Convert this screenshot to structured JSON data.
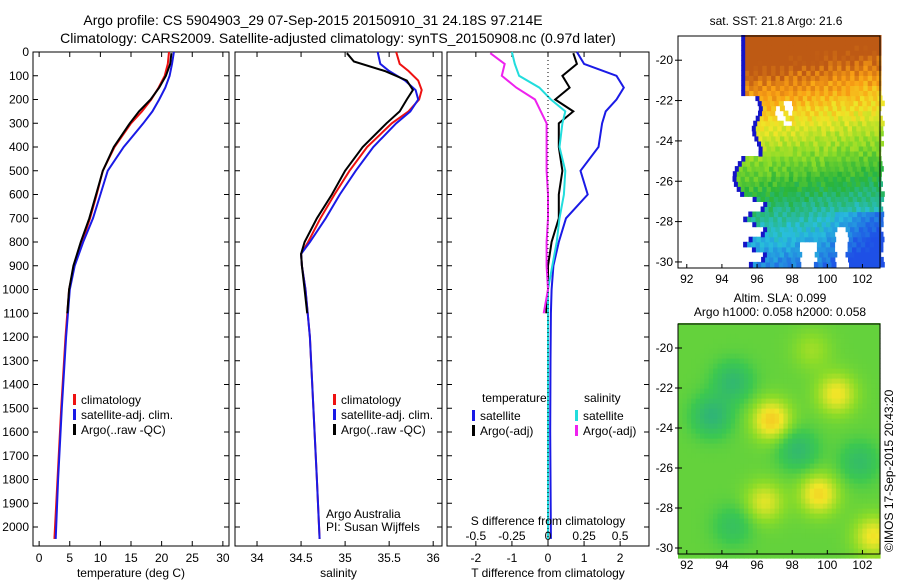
{
  "header": {
    "title_line1": "Argo profile: CS 5904903_29 07-Sep-2015 20150910_31 24.18S 97.214E",
    "title_line2": "Climatology: CARS2009. Satellite-adjusted climatology: synTS_20150908.nc (0.97d later)"
  },
  "colors": {
    "climatology": "#ee1111",
    "satellite": "#1a1ae6",
    "argo": "#000000",
    "sal_satellite": "#22dddd",
    "sal_argo": "#ee22ee"
  },
  "credit": {
    "line1": "Argo Australia",
    "line2": "PI: Susan Wijffels"
  },
  "stamp": "©IMOS 17-Sep-2015 20:43:20",
  "chart_data": [
    {
      "type": "line",
      "id": "temperature",
      "xlabel": "temperature (deg C)",
      "ylabel": "",
      "xlim": [
        -1,
        31
      ],
      "ylim": [
        2080,
        0
      ],
      "xticks": [
        0,
        5,
        10,
        15,
        20,
        25,
        30
      ],
      "yticks": [
        0,
        100,
        200,
        300,
        400,
        500,
        600,
        700,
        800,
        900,
        1000,
        1100,
        1200,
        1300,
        1400,
        1500,
        1600,
        1700,
        1800,
        1900,
        2000
      ],
      "legend": [
        "climatology",
        "satellite-adj. clim.",
        "Argo(..raw -QC)"
      ],
      "series": [
        {
          "name": "climatology",
          "color": "#ee1111",
          "depth": [
            0,
            50,
            100,
            150,
            200,
            250,
            300,
            400,
            500,
            600,
            700,
            800,
            900,
            1000,
            1200,
            1500,
            1800,
            2050
          ],
          "values": [
            21.2,
            21.0,
            20.5,
            19.5,
            18.3,
            16.8,
            15.0,
            12.3,
            10.4,
            9.4,
            8.3,
            7.0,
            5.7,
            4.9,
            4.3,
            3.6,
            3.0,
            2.5
          ]
        },
        {
          "name": "satellite-adj. clim.",
          "color": "#1a1ae6",
          "depth": [
            0,
            50,
            100,
            150,
            200,
            250,
            300,
            400,
            500,
            600,
            700,
            800,
            900,
            1000,
            1200,
            1500,
            1800,
            2050
          ],
          "values": [
            22.0,
            21.7,
            21.3,
            20.6,
            19.6,
            18.5,
            17.0,
            13.8,
            11.2,
            10.0,
            8.8,
            7.2,
            5.8,
            5.0,
            4.4,
            3.7,
            3.1,
            2.7
          ]
        },
        {
          "name": "Argo(..raw -QC)",
          "color": "#000000",
          "depth": [
            5,
            50,
            100,
            150,
            200,
            250,
            300,
            400,
            500,
            600,
            700,
            800,
            900,
            1000,
            1100
          ],
          "values": [
            21.6,
            21.4,
            20.7,
            19.6,
            18.2,
            16.3,
            14.8,
            12.2,
            10.4,
            9.3,
            8.2,
            6.8,
            5.6,
            4.9,
            4.6
          ]
        }
      ]
    },
    {
      "type": "line",
      "id": "salinity",
      "xlabel": "salinity",
      "ylabel": "",
      "xlim": [
        33.75,
        36.1
      ],
      "ylim": [
        2080,
        0
      ],
      "xticks": [
        34,
        34.5,
        35,
        35.5,
        36
      ],
      "legend": [
        "climatology",
        "satellite-adj. clim.",
        "Argo(..raw -QC)"
      ],
      "series": [
        {
          "name": "climatology",
          "color": "#ee1111",
          "depth": [
            0,
            50,
            80,
            120,
            160,
            200,
            250,
            300,
            400,
            500,
            600,
            700,
            800,
            850,
            900,
            1000,
            1200,
            1500,
            1800,
            2050
          ],
          "values": [
            35.58,
            35.62,
            35.72,
            35.83,
            35.87,
            35.84,
            35.72,
            35.53,
            35.25,
            35.05,
            34.88,
            34.72,
            34.58,
            34.5,
            34.51,
            34.55,
            34.6,
            34.64,
            34.68,
            34.71
          ]
        },
        {
          "name": "satellite-adj. clim.",
          "color": "#1a1ae6",
          "depth": [
            0,
            50,
            80,
            120,
            160,
            200,
            250,
            300,
            400,
            500,
            600,
            700,
            800,
            850,
            900,
            1000,
            1200,
            1500,
            1800,
            2050
          ],
          "values": [
            35.37,
            35.4,
            35.5,
            35.68,
            35.8,
            35.83,
            35.74,
            35.58,
            35.32,
            35.12,
            34.94,
            34.78,
            34.6,
            34.5,
            34.51,
            34.55,
            34.6,
            34.64,
            34.68,
            34.71
          ]
        },
        {
          "name": "Argo(..raw -QC)",
          "color": "#000000",
          "depth": [
            5,
            40,
            80,
            120,
            160,
            200,
            250,
            300,
            400,
            500,
            600,
            700,
            800,
            850,
            900,
            1000,
            1100
          ],
          "values": [
            35.02,
            35.1,
            35.45,
            35.7,
            35.77,
            35.7,
            35.62,
            35.47,
            35.2,
            35.0,
            34.85,
            34.68,
            34.54,
            34.5,
            34.51,
            34.54,
            34.57
          ]
        }
      ]
    },
    {
      "type": "line",
      "id": "difference",
      "xlabel": "T difference from climatology",
      "xlabel_top": "S difference from climatology",
      "xlim": [
        -2.8,
        2.8
      ],
      "ylim": [
        2080,
        0
      ],
      "xticks": [
        -2,
        -1,
        0,
        1,
        2
      ],
      "xticks_sal": [
        -0.5,
        -0.25,
        0,
        0.25,
        0.5
      ],
      "xtick_labels_sal": [
        "-0.5",
        "-0.25",
        "0",
        "0.25",
        "0.5"
      ],
      "legend_temperature_title": "temperature",
      "legend_salinity_title": "salinity",
      "legend_temperature": [
        "satellite",
        "Argo(-adj)"
      ],
      "legend_salinity": [
        "satellite",
        "Argo(-adj)"
      ],
      "series": [
        {
          "name": "T satellite",
          "color": "#1a1ae6",
          "depth": [
            0,
            50,
            100,
            150,
            200,
            250,
            300,
            400,
            500,
            600,
            700,
            800,
            900,
            1000,
            1100,
            1300,
            1600,
            2050
          ],
          "values": [
            0.8,
            1.0,
            1.9,
            2.1,
            1.9,
            1.6,
            1.5,
            1.4,
            0.9,
            1.1,
            0.5,
            0.3,
            0.15,
            0.1,
            0.08,
            0.07,
            0.06,
            0.08
          ]
        },
        {
          "name": "T Argo(-adj)",
          "color": "#000000",
          "depth": [
            5,
            50,
            100,
            150,
            200,
            250,
            300,
            400,
            500,
            600,
            700,
            800,
            900,
            1000,
            1100
          ],
          "values": [
            0.7,
            0.8,
            0.4,
            0.6,
            0.2,
            0.7,
            0.3,
            0.3,
            0.4,
            0.3,
            0.3,
            0.1,
            0.0,
            0.0,
            -0.05
          ]
        },
        {
          "name": "S satellite",
          "color": "#22dddd",
          "depth": [
            0,
            50,
            100,
            150,
            200,
            250,
            300,
            400,
            500,
            600,
            700,
            800,
            900,
            1000,
            1100,
            1300,
            1600,
            2050
          ],
          "values": [
            -0.25,
            -0.23,
            -0.2,
            -0.06,
            0.02,
            0.12,
            0.1,
            0.08,
            0.12,
            0.11,
            0.08,
            0.06,
            0.03,
            0.0,
            0.0,
            0.0,
            0.0,
            0.0
          ]
        },
        {
          "name": "S Argo(-adj)",
          "color": "#ee22ee",
          "depth": [
            5,
            50,
            100,
            150,
            200,
            250,
            300,
            400,
            500,
            600,
            700,
            800,
            900,
            1000,
            1100
          ],
          "values": [
            -0.4,
            -0.3,
            -0.32,
            -0.22,
            -0.09,
            -0.05,
            -0.01,
            -0.01,
            -0.01,
            0.0,
            0.0,
            -0.01,
            -0.01,
            0.0,
            -0.03
          ]
        }
      ]
    },
    {
      "type": "heatmap",
      "id": "sst-map",
      "title": "sat. SST: 21.8 Argo: 21.6",
      "xlim": [
        91.5,
        103
      ],
      "ylim": [
        -30.3,
        -18.8
      ],
      "xticks": [
        92,
        94,
        96,
        98,
        100,
        102
      ],
      "yticks": [
        -30,
        -28,
        -26,
        -24,
        -22,
        -20
      ]
    },
    {
      "type": "heatmap",
      "id": "sla-map",
      "title_line1": "Altim. SLA: 0.099",
      "title_line2": "Argo h1000: 0.058 h2000: 0.058",
      "xlim": [
        91.5,
        103
      ],
      "ylim": [
        -30.3,
        -18.8
      ],
      "xticks": [
        92,
        94,
        96,
        98,
        100,
        102
      ],
      "yticks": [
        -30,
        -28,
        -26,
        -24,
        -22,
        -20
      ]
    }
  ]
}
